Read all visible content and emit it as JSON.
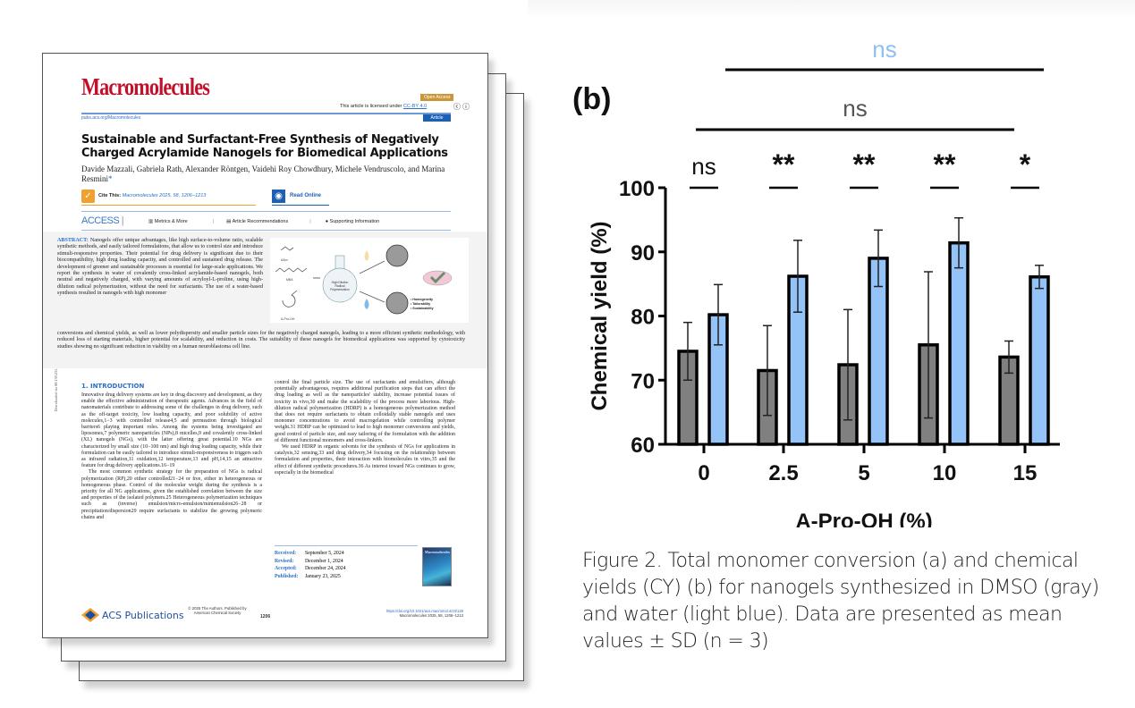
{
  "article": {
    "journal": "Macromolecules",
    "open_access_badge": "Open Access",
    "license_text": "This article is licensed under",
    "license_link": "CC-BY 4.0",
    "license_icons": "ⓒ ⓘ",
    "site_url": "pubs.acs.org/Macromolecules",
    "article_type": "Article",
    "title": "Sustainable and Surfactant-Free Synthesis of Negatively Charged Acrylamide Nanogels for Biomedical Applications",
    "authors": "Davide Mazzali, Gabriela Rath, Alexander Röntgen, Vaidehi Roy Chowdhury, Michele Vendruscolo, and Marina Resmini",
    "authors_star": "*",
    "cite_label": "Cite This:",
    "cite_ref": "Macromolecules 2025, 58, 1206−1213",
    "read_online": "Read Online",
    "access_label": "ACCESS",
    "tabs": [
      "Metrics & More",
      "Article Recommendations",
      "Supporting Information"
    ],
    "abstract_label": "ABSTRACT:",
    "abstract_part1": "Nanogels offer unique advantages, like high surface-to-volume ratio, scalable synthetic methods, and easily tailored formulations, that allow us to control size and introduce stimuli-responsive properties. Their potential for drug delivery is significant due to their biocompatibility, high drug loading capacity, and controlled and sustained drug release. The development of greener and sustainable processes is essential for large-scale applications. We report the synthesis in water of covalently cross-linked acrylamide-based nanogels, both neutral and negatively charged, with varying amounts of acryloyl-L-proline, using high-dilution radical polymerization, without the need for surfactants. The use of a water-based synthesis resulted in nanogels with high monomer",
    "abstract_part2": "conversions and chemical yields, as well as lower polydispersity and smaller particle sizes for the negatively charged nanogels, leading to a more efficient synthetic methodology, with reduced loss of starting materials, higher potential for scalability, and reduction in costs. The suitability of these nanogels for biomedical applications was supported by cytotoxicity studies showing no significant reduction in viability on a human neuroblastoma cell line.",
    "toc_graphic": {
      "labels": [
        "AAm",
        "MBA",
        "A-Pro-OH"
      ],
      "flask_label": "High Dilution Radical Polymerization",
      "bullets": [
        "• Homogeneity",
        "• Tailorability",
        "• Sustainability"
      ]
    },
    "intro_heading": "1. INTRODUCTION",
    "intro_col1": "Innovative drug delivery systems are key in drug discovery and development, as they enable the effective administration of therapeutic agents. Advances in the field of nanomaterials contribute to addressing some of the challenges in drug delivery, such as the off-target toxicity, low loading capacity, and poor solubility of active molecules,1−3 with controlled release4,5 and permeation through biological barriers6 playing important roles. Among the systems being investigated are liposomes,7 polymeric nanoparticles (NPs),8 micelles,9 and covalently cross-linked (XL) nanogels (NGs), with the latter offering great potential.10 NGs are characterized by small size (10−100 nm) and high drug loading capacity, while their formulation can be easily tailored to introduce stimuli-responsiveness to triggers such as infrared radiation,11 oxidation,12 temperature,13 and pH,14,15 an attractive feature for drug delivery applications.16−19",
    "intro_col1_p2": "The most common synthetic strategy for the preparation of NGs is radical polymerization (RP),20 either controlled21−24 or free, either in heterogeneous or homogeneous phase. Control of the molecular weight during the synthesis is a priority for all NG applications, given the established correlation between the size and properties of the isolated polymers.25 Heterogeneous polymerization techniques such as (inverse) emulsion/micro-emulsion/miniemulsion26−28 or precipitation/dispersion29 require surfactants to stabilize the growing polymeric chains and",
    "intro_col2": "control the final particle size. The use of surfactants and emulsifiers, although potentially advantageous, requires additional purification steps that can affect the drug loading as well as the nanoparticles' stability, increase potential issues of toxicity in vivo,30 and make the scalability of the process more laborious. High-dilution radical polymerization (HDRP) is a homogeneous polymerization method that does not require surfactants to obtain colloidally stable nanogels and uses monomer concentrations to avoid macrogelation while controlling polymer weight.31 HDRP can be optimized to lead to high monomer conversions and yields, good control of particle size, and easy tailoring of the formulation with the addition of different functional monomers and cross-linkers.",
    "intro_col2_p2": "We used HDRP in organic solvents for the synthesis of NGs for applications in catalysis,32 sensing,33 and drug delivery,34 focusing on the relationship between formulation and properties, their interaction with biomolecules in vitro,35 and the effect of different synthetic procedures.36 As interest toward NGs continues to grow, especially in the biomedical",
    "dates": [
      {
        "k": "Received:",
        "v": "September 5, 2024"
      },
      {
        "k": "Revised:",
        "v": "December 1, 2024"
      },
      {
        "k": "Accepted:",
        "v": "December 24, 2024"
      },
      {
        "k": "Published:",
        "v": "January 23, 2025"
      }
    ],
    "cover_title": "Macromolecules",
    "publisher_logo": "ACS Publications",
    "copyright": "© 2025 The Authors. Published by American Chemical Society",
    "page_number": "1206",
    "doi": "https://doi.org/10.1021/acs.macromol.4c02128",
    "footer_ref": "Macromolecules 2025, 58, 1206−1213",
    "side_note": "Downloaded via 88.130.231.171 on October 9, 2025 at 22:29:57 (UTC). See https://pubs.acs.org/sharingguidelines for options on how to legitimately share published articles."
  },
  "chart_data": {
    "type": "bar",
    "panel_label": "(b)",
    "title": "",
    "xlabel": "A-Pro-OH (%)",
    "ylabel": "Chemical yield (%)",
    "categories": [
      "0",
      "2.5",
      "5",
      "10",
      "15"
    ],
    "ylim": [
      60,
      100
    ],
    "yticks": [
      60,
      70,
      80,
      90,
      100
    ],
    "grid": false,
    "series": [
      {
        "name": "DMSO",
        "color": "#808080",
        "values": [
          74.5,
          71.5,
          72.4,
          75.5,
          73.6
        ],
        "sd": [
          4.5,
          7.0,
          8.6,
          11.4,
          2.5
        ]
      },
      {
        "name": "water",
        "color": "#94c3f7",
        "values": [
          80.2,
          86.2,
          89.0,
          91.4,
          86.1
        ],
        "sd": [
          4.7,
          5.6,
          4.4,
          3.9,
          1.8
        ]
      }
    ],
    "pair_significance": [
      "ns",
      "**",
      "**",
      "**",
      "*"
    ],
    "bracket_dmso": {
      "label": "ns",
      "color": "#555555",
      "from": "0",
      "to": "15"
    },
    "bracket_water": {
      "label": "ns",
      "color": "#8ec0f2",
      "from": "0",
      "to": "15"
    }
  },
  "caption": "Figure 2. Total monomer conversion (a) and chemical yields (CY) (b) for nanogels synthesized in DMSO (gray) and water (light blue). Data are presented as mean values ± SD (n = 3)"
}
